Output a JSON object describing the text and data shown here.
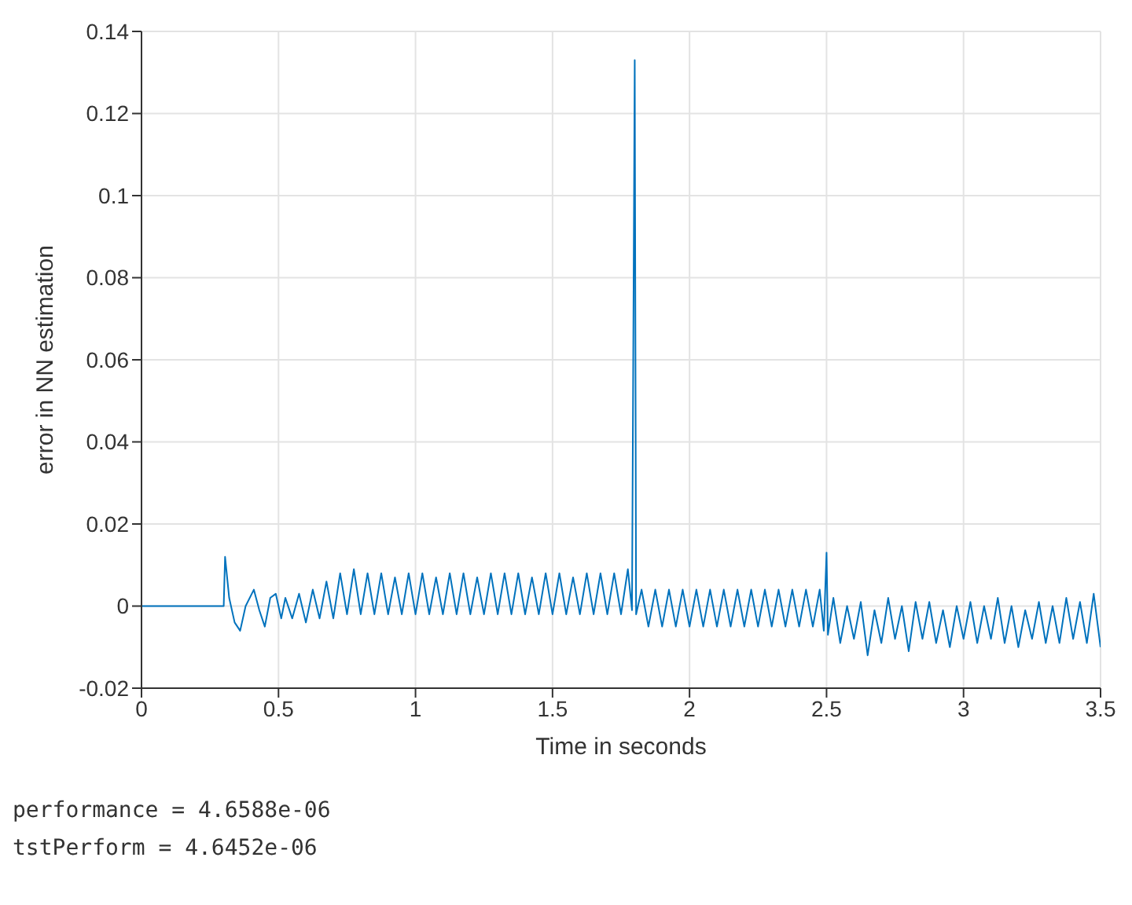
{
  "chart_data": {
    "type": "line",
    "xlabel": "Time in seconds",
    "ylabel": "error in NN estimation",
    "x": [
      0,
      0.3,
      0.305,
      0.32,
      0.34,
      0.36,
      0.38,
      0.41,
      0.43,
      0.45,
      0.47,
      0.49,
      0.51,
      0.525,
      0.55,
      0.575,
      0.6,
      0.625,
      0.65,
      0.675,
      0.7,
      0.725,
      0.75,
      0.775,
      0.8,
      0.825,
      0.85,
      0.875,
      0.9,
      0.925,
      0.95,
      0.975,
      1,
      1.025,
      1.05,
      1.075,
      1.1,
      1.125,
      1.15,
      1.175,
      1.2,
      1.225,
      1.25,
      1.275,
      1.3,
      1.325,
      1.35,
      1.375,
      1.4,
      1.425,
      1.45,
      1.475,
      1.5,
      1.525,
      1.55,
      1.575,
      1.6,
      1.625,
      1.65,
      1.675,
      1.7,
      1.725,
      1.75,
      1.775,
      1.79,
      1.8,
      1.805,
      1.825,
      1.85,
      1.875,
      1.9,
      1.925,
      1.95,
      1.975,
      2,
      2.025,
      2.05,
      2.075,
      2.1,
      2.125,
      2.15,
      2.175,
      2.2,
      2.225,
      2.25,
      2.275,
      2.3,
      2.325,
      2.35,
      2.375,
      2.4,
      2.425,
      2.45,
      2.475,
      2.49,
      2.5,
      2.505,
      2.525,
      2.55,
      2.575,
      2.6,
      2.625,
      2.65,
      2.675,
      2.7,
      2.725,
      2.75,
      2.775,
      2.8,
      2.825,
      2.85,
      2.875,
      2.9,
      2.925,
      2.95,
      2.975,
      3,
      3.025,
      3.05,
      3.075,
      3.1,
      3.125,
      3.15,
      3.175,
      3.2,
      3.225,
      3.25,
      3.275,
      3.3,
      3.325,
      3.35,
      3.375,
      3.4,
      3.425,
      3.45,
      3.475,
      3.5
    ],
    "series": [
      {
        "color": "#0072bd",
        "values": [
          0,
          0,
          0.012,
          0.002,
          -0.004,
          -0.006,
          0,
          0.004,
          -0.001,
          -0.005,
          0.002,
          0.003,
          -0.003,
          0.002,
          -0.003,
          0.003,
          -0.004,
          0.004,
          -0.003,
          0.006,
          -0.003,
          0.008,
          -0.002,
          0.009,
          -0.002,
          0.008,
          -0.002,
          0.008,
          -0.002,
          0.007,
          -0.002,
          0.008,
          -0.002,
          0.008,
          -0.002,
          0.007,
          -0.002,
          0.008,
          -0.002,
          0.008,
          -0.002,
          0.007,
          -0.002,
          0.008,
          -0.002,
          0.008,
          -0.002,
          0.008,
          -0.002,
          0.007,
          -0.002,
          0.008,
          -0.002,
          0.008,
          -0.002,
          0.007,
          -0.002,
          0.008,
          -0.002,
          0.008,
          -0.002,
          0.008,
          -0.002,
          0.009,
          -0.001,
          0.133,
          -0.002,
          0.004,
          -0.005,
          0.004,
          -0.005,
          0.004,
          -0.005,
          0.004,
          -0.005,
          0.004,
          -0.005,
          0.004,
          -0.005,
          0.004,
          -0.005,
          0.004,
          -0.005,
          0.004,
          -0.005,
          0.004,
          -0.005,
          0.004,
          -0.005,
          0.004,
          -0.005,
          0.004,
          -0.005,
          0.004,
          -0.006,
          0.013,
          -0.007,
          0.002,
          -0.009,
          0,
          -0.008,
          0.001,
          -0.012,
          -0.001,
          -0.009,
          0.002,
          -0.008,
          0,
          -0.011,
          0.001,
          -0.008,
          0.001,
          -0.009,
          -0.001,
          -0.01,
          0,
          -0.008,
          0.001,
          -0.009,
          0,
          -0.008,
          0.002,
          -0.009,
          0,
          -0.01,
          -0.001,
          -0.008,
          0.001,
          -0.009,
          0,
          -0.009,
          0.002,
          -0.008,
          0.001,
          -0.009,
          0.003,
          -0.01
        ]
      }
    ],
    "xlim": [
      0,
      3.5
    ],
    "xticks": [
      0,
      0.5,
      1,
      1.5,
      2,
      2.5,
      3,
      3.5
    ],
    "ylim": [
      -0.02,
      0.14
    ],
    "yticks": [
      -0.02,
      0,
      0.02,
      0.04,
      0.06,
      0.08,
      0.1,
      0.12,
      0.14
    ],
    "grid": true,
    "marker": "none",
    "line_style": "solid",
    "annotations": [
      "performance = 4.6588e-06",
      "tstPerform = 4.6452e-06"
    ]
  }
}
